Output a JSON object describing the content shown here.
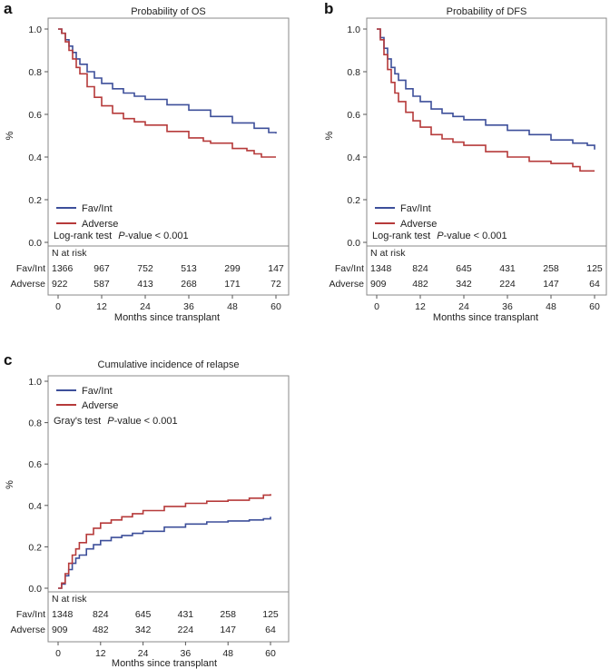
{
  "chart_data": [
    {
      "panel": "a",
      "type": "line",
      "title": "Probability of OS",
      "xlabel": "Months since transplant",
      "ylabel": "%",
      "xlim": [
        0,
        60
      ],
      "ylim": [
        0,
        1
      ],
      "xticks": [
        "0",
        "12",
        "24",
        "36",
        "48",
        "60"
      ],
      "yticks": [
        "0.0",
        "0.2",
        "0.4",
        "0.6",
        "0.8",
        "1.0"
      ],
      "grid": false,
      "legend_position": "bottom-left",
      "test_label": "Log-rank test",
      "test_p_italic": "P",
      "test_p_rest": "-value  < 0.001",
      "risk_header": "N at risk",
      "series": [
        {
          "name": "Fav/Int",
          "color": "#3d4f9a",
          "x": [
            0,
            1,
            2,
            3,
            4,
            5,
            6,
            8,
            10,
            12,
            15,
            18,
            21,
            24,
            30,
            36,
            42,
            48,
            54,
            58,
            60
          ],
          "y": [
            1.0,
            0.98,
            0.95,
            0.92,
            0.89,
            0.86,
            0.835,
            0.8,
            0.77,
            0.745,
            0.72,
            0.7,
            0.685,
            0.67,
            0.645,
            0.62,
            0.59,
            0.56,
            0.535,
            0.515,
            0.51
          ],
          "at_risk": [
            "1366",
            "967",
            "752",
            "513",
            "299",
            "147"
          ]
        },
        {
          "name": "Adverse",
          "color": "#b63a3a",
          "x": [
            0,
            1,
            2,
            3,
            4,
            5,
            6,
            8,
            10,
            12,
            15,
            18,
            21,
            24,
            30,
            36,
            40,
            42,
            48,
            52,
            54,
            56,
            60
          ],
          "y": [
            1.0,
            0.98,
            0.94,
            0.9,
            0.86,
            0.82,
            0.79,
            0.73,
            0.68,
            0.64,
            0.605,
            0.58,
            0.565,
            0.55,
            0.52,
            0.49,
            0.475,
            0.465,
            0.44,
            0.43,
            0.415,
            0.4,
            0.4
          ],
          "at_risk": [
            "922",
            "587",
            "413",
            "268",
            "171",
            "72"
          ]
        }
      ]
    },
    {
      "panel": "b",
      "type": "line",
      "title": "Probability of DFS",
      "xlabel": "Months since transplant",
      "ylabel": "%",
      "xlim": [
        0,
        60
      ],
      "ylim": [
        0,
        1
      ],
      "xticks": [
        "0",
        "12",
        "24",
        "36",
        "48",
        "60"
      ],
      "yticks": [
        "0.0",
        "0.2",
        "0.4",
        "0.6",
        "0.8",
        "1.0"
      ],
      "grid": false,
      "legend_position": "bottom-left",
      "test_label": "Log-rank test",
      "test_p_italic": "P",
      "test_p_rest": "-value  < 0.001",
      "risk_header": "N at risk",
      "series": [
        {
          "name": "Fav/Int",
          "color": "#3d4f9a",
          "x": [
            0,
            1,
            2,
            3,
            4,
            5,
            6,
            8,
            10,
            12,
            15,
            18,
            21,
            24,
            30,
            36,
            42,
            48,
            54,
            58,
            60
          ],
          "y": [
            1.0,
            0.96,
            0.91,
            0.86,
            0.82,
            0.79,
            0.76,
            0.72,
            0.685,
            0.66,
            0.625,
            0.605,
            0.59,
            0.575,
            0.55,
            0.525,
            0.505,
            0.48,
            0.465,
            0.455,
            0.435
          ],
          "at_risk": [
            "1348",
            "824",
            "645",
            "431",
            "258",
            "125"
          ]
        },
        {
          "name": "Adverse",
          "color": "#b63a3a",
          "x": [
            0,
            1,
            2,
            3,
            4,
            5,
            6,
            8,
            10,
            12,
            15,
            18,
            21,
            24,
            30,
            36,
            42,
            48,
            54,
            56,
            60
          ],
          "y": [
            1.0,
            0.95,
            0.88,
            0.81,
            0.75,
            0.7,
            0.66,
            0.61,
            0.57,
            0.54,
            0.505,
            0.485,
            0.47,
            0.455,
            0.425,
            0.4,
            0.38,
            0.37,
            0.355,
            0.335,
            0.335
          ],
          "at_risk": [
            "909",
            "482",
            "342",
            "224",
            "147",
            "64"
          ]
        }
      ]
    },
    {
      "panel": "c",
      "type": "line",
      "title": "Cumulative incidence of relapse",
      "xlabel": "Months since transplant",
      "ylabel": "%",
      "xlim": [
        0,
        60
      ],
      "ylim": [
        0,
        1
      ],
      "xticks": [
        "0",
        "12",
        "24",
        "36",
        "48",
        "60"
      ],
      "yticks": [
        "0.0",
        "0.2",
        "0.4",
        "0.6",
        "0.8",
        "1.0"
      ],
      "grid": false,
      "legend_position": "top-left",
      "test_label": "Gray's test",
      "test_p_italic": "P",
      "test_p_rest": "-value  < 0.001",
      "risk_header": "N at risk",
      "series": [
        {
          "name": "Fav/Int",
          "color": "#3d4f9a",
          "x": [
            0,
            1,
            2,
            3,
            4,
            5,
            6,
            8,
            10,
            12,
            15,
            18,
            21,
            24,
            30,
            36,
            42,
            48,
            54,
            58,
            60
          ],
          "y": [
            0.0,
            0.02,
            0.06,
            0.09,
            0.12,
            0.145,
            0.16,
            0.19,
            0.21,
            0.23,
            0.245,
            0.255,
            0.265,
            0.275,
            0.295,
            0.31,
            0.32,
            0.325,
            0.33,
            0.335,
            0.345
          ],
          "at_risk": [
            "1348",
            "824",
            "645",
            "431",
            "258",
            "125"
          ]
        },
        {
          "name": "Adverse",
          "color": "#b63a3a",
          "x": [
            0,
            1,
            2,
            3,
            4,
            5,
            6,
            8,
            10,
            12,
            15,
            18,
            21,
            24,
            30,
            36,
            42,
            48,
            54,
            58,
            60
          ],
          "y": [
            0.0,
            0.025,
            0.07,
            0.12,
            0.16,
            0.19,
            0.22,
            0.26,
            0.29,
            0.315,
            0.33,
            0.345,
            0.36,
            0.375,
            0.395,
            0.41,
            0.42,
            0.425,
            0.435,
            0.45,
            0.455
          ],
          "at_risk": [
            "909",
            "482",
            "342",
            "224",
            "147",
            "64"
          ]
        }
      ]
    }
  ]
}
